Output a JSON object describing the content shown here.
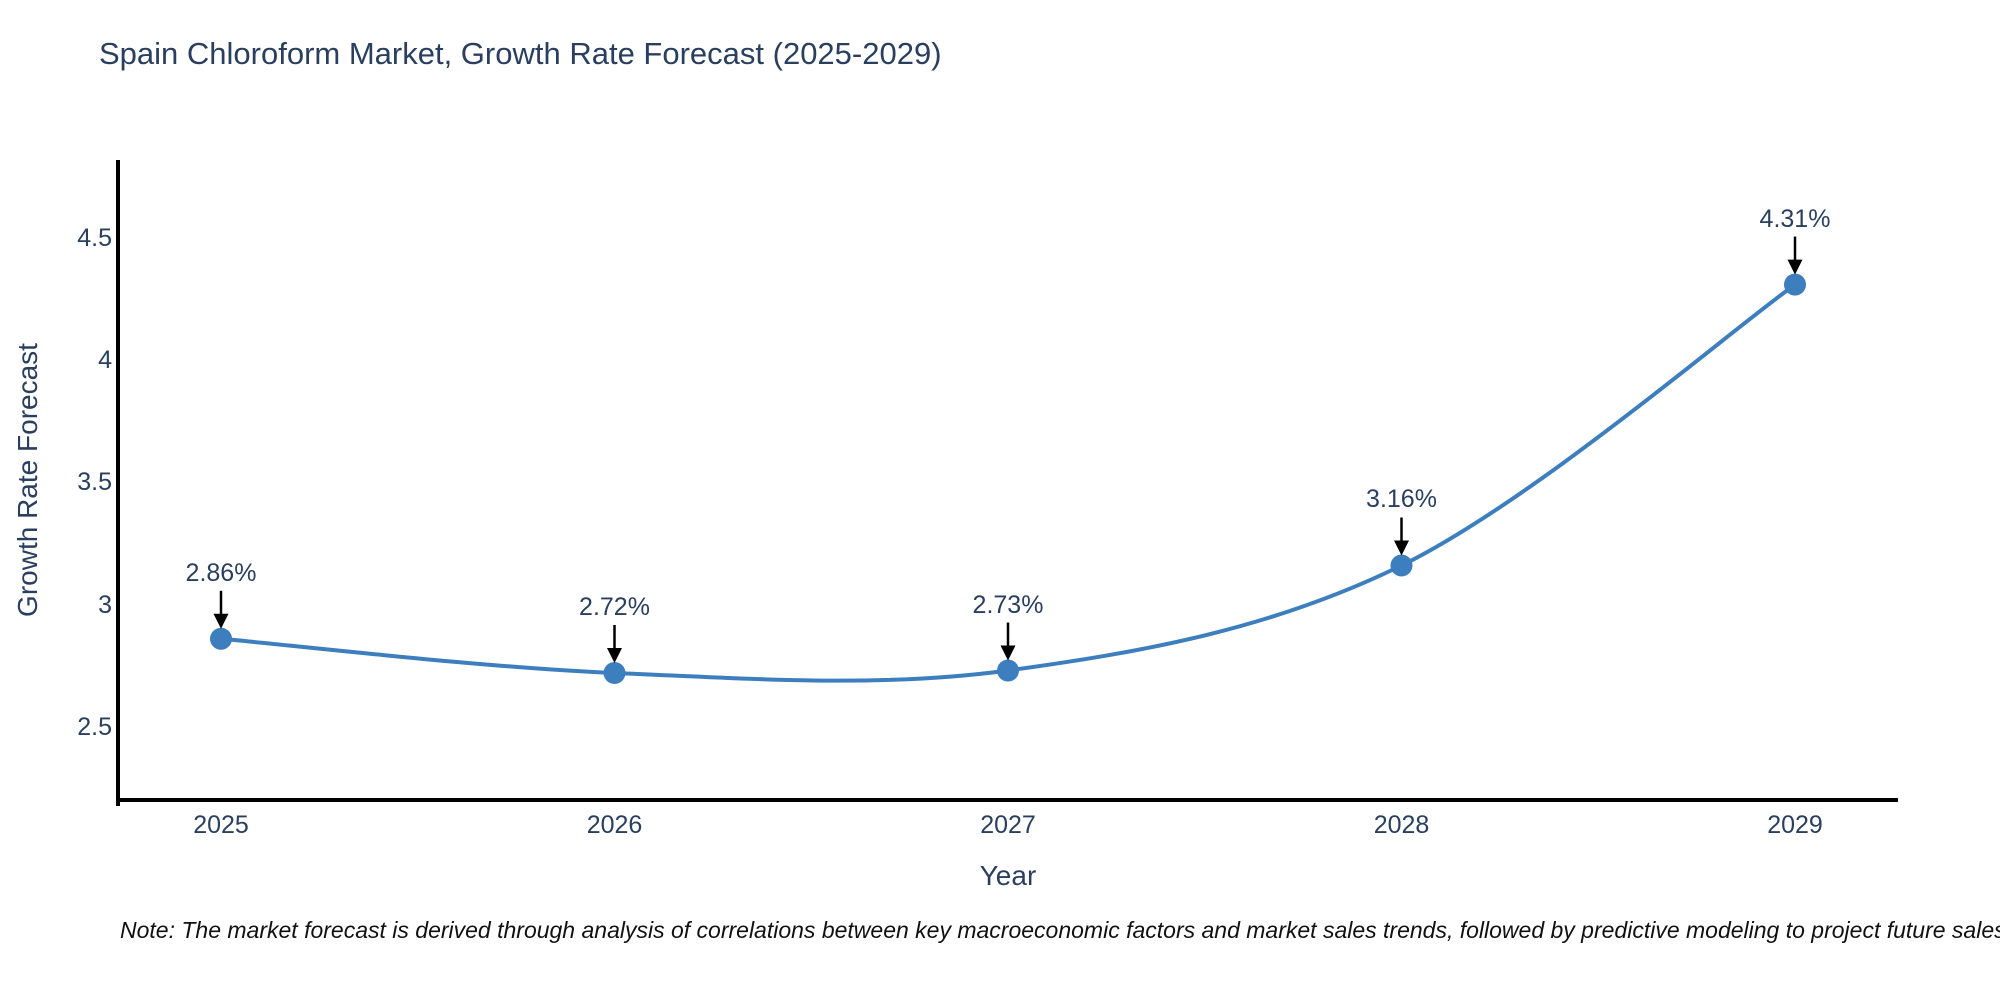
{
  "title": "Spain Chloroform Market, Growth Rate Forecast (2025-2029)",
  "note": "Note: The market forecast is derived through analysis of correlations between key macroeconomic factors and market sales trends, followed by predictive modeling to project future sales",
  "chart_data": {
    "type": "line",
    "title": "Spain Chloroform Market, Growth Rate Forecast (2025-2029)",
    "xlabel": "Year",
    "ylabel": "Growth Rate Forecast",
    "categories": [
      "2025",
      "2026",
      "2027",
      "2028",
      "2029"
    ],
    "values": [
      2.86,
      2.72,
      2.73,
      3.16,
      4.31
    ],
    "point_labels": [
      "2.86%",
      "2.72%",
      "2.73%",
      "3.16%",
      "4.31%"
    ],
    "yticks": [
      2.5,
      3,
      3.5,
      4,
      4.5
    ],
    "ylim": [
      2.2,
      4.82
    ],
    "line_shape": "spline",
    "grid": false,
    "legend": "none",
    "colors": {
      "line": "#3d7ebf",
      "marker": "#3d7ebf",
      "axis": "#000000",
      "text": "#2a3f5f",
      "arrow": "#000000"
    }
  }
}
